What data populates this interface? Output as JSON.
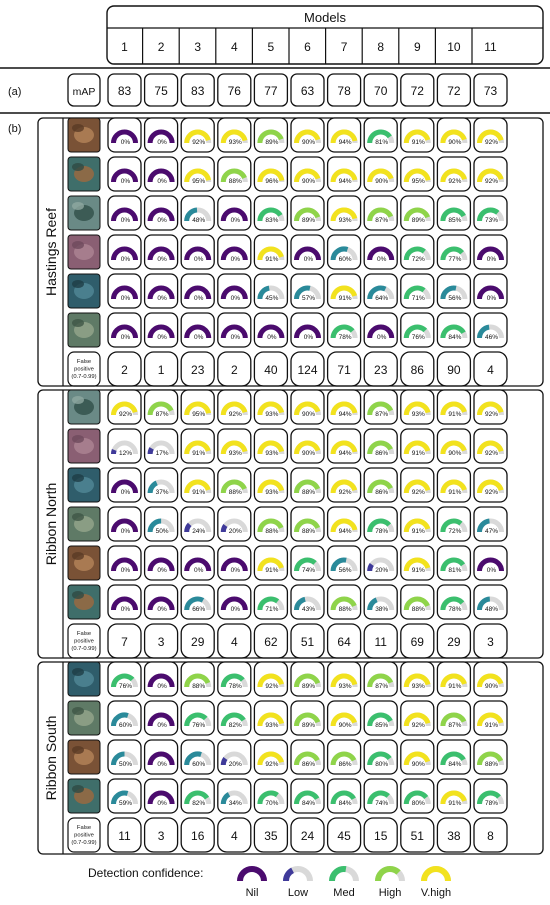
{
  "chart_data": {
    "type": "table",
    "header": {
      "group_label": "Models",
      "models": [
        "1",
        "2",
        "3",
        "4",
        "5",
        "6",
        "7",
        "8",
        "9",
        "10",
        "11"
      ]
    },
    "section_a": {
      "label": "(a)",
      "metric": "mAP",
      "values": [
        83,
        75,
        83,
        76,
        77,
        63,
        78,
        70,
        72,
        72,
        73
      ]
    },
    "section_b": {
      "label": "(b)"
    },
    "fp_label": [
      "False",
      "positive",
      "(0.7-0.99)"
    ],
    "groups": [
      {
        "name": "Hastings Reef",
        "rows": [
          [
            0,
            0,
            92,
            93,
            89,
            90,
            94,
            81,
            91,
            90,
            92
          ],
          [
            0,
            0,
            95,
            88,
            96,
            90,
            94,
            90,
            95,
            92,
            92
          ],
          [
            0,
            0,
            48,
            0,
            83,
            89,
            93,
            87,
            89,
            85,
            73
          ],
          [
            0,
            0,
            0,
            0,
            91,
            0,
            60,
            0,
            72,
            77,
            0
          ],
          [
            0,
            0,
            0,
            0,
            45,
            57,
            91,
            64,
            71,
            56,
            0
          ],
          [
            0,
            0,
            0,
            0,
            0,
            0,
            78,
            0,
            76,
            84,
            46
          ]
        ],
        "false_positives": [
          2,
          1,
          23,
          2,
          40,
          124,
          71,
          23,
          86,
          90,
          4
        ]
      },
      {
        "name": "Ribbon North",
        "rows": [
          [
            92,
            87,
            95,
            92,
            93,
            90,
            94,
            87,
            93,
            91,
            92
          ],
          [
            12,
            17,
            91,
            93,
            93,
            90,
            94,
            86,
            91,
            90,
            92
          ],
          [
            0,
            37,
            91,
            88,
            93,
            88,
            92,
            86,
            92,
            91,
            92
          ],
          [
            0,
            50,
            24,
            20,
            88,
            88,
            94,
            78,
            91,
            72,
            47
          ],
          [
            0,
            0,
            0,
            0,
            91,
            74,
            56,
            20,
            91,
            81,
            0
          ],
          [
            0,
            0,
            66,
            0,
            71,
            43,
            88,
            38,
            88,
            78,
            48
          ]
        ],
        "false_positives": [
          7,
          3,
          29,
          4,
          62,
          51,
          64,
          11,
          69,
          29,
          3
        ]
      },
      {
        "name": "Ribbon South",
        "rows": [
          [
            76,
            0,
            88,
            78,
            92,
            89,
            93,
            87,
            93,
            91,
            90
          ],
          [
            60,
            0,
            76,
            82,
            93,
            89,
            90,
            85,
            92,
            87,
            91
          ],
          [
            50,
            0,
            60,
            20,
            92,
            86,
            86,
            80,
            90,
            84,
            88
          ],
          [
            59,
            0,
            82,
            34,
            70,
            84,
            84,
            74,
            80,
            91,
            78
          ]
        ],
        "false_positives": [
          11,
          3,
          16,
          4,
          35,
          24,
          45,
          15,
          51,
          38,
          8
        ]
      }
    ],
    "legend": {
      "title": "Detection confidence:",
      "items": [
        {
          "label": "Nil",
          "color": "#4b0b6e"
        },
        {
          "label": "Low",
          "color": "#3f3a9a"
        },
        {
          "label": "Med",
          "color": "#3bbf6e"
        },
        {
          "label": "High",
          "color": "#8fd44a"
        },
        {
          "label": "V.high",
          "color": "#f2e21e"
        }
      ]
    },
    "colors": {
      "nil": "#4b0b6e",
      "low": "#3f3a9a",
      "teal": "#2a8a9a",
      "med": "#3bbf6e",
      "high": "#8fd44a",
      "vhigh": "#f2e21e",
      "track": "#d9d9d9"
    }
  }
}
